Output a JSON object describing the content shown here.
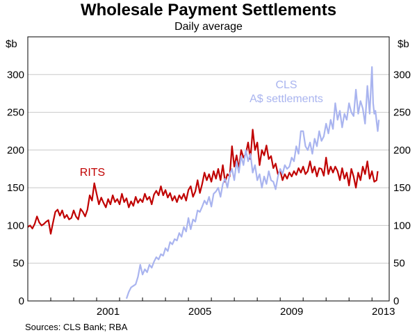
{
  "chart_data": {
    "type": "line",
    "title": "Wholesale Payment Settlements",
    "subtitle": "Daily average",
    "y_unit_left": "$b",
    "y_unit_right": "$b",
    "ylim": [
      0,
      350
    ],
    "y_ticks": [
      0,
      50,
      100,
      150,
      200,
      250,
      300
    ],
    "x_ticks": [
      {
        "value": 2001,
        "label": "2001"
      },
      {
        "value": 2005,
        "label": "2005"
      },
      {
        "value": 2009,
        "label": "2009"
      },
      {
        "value": 2013,
        "label": "2013"
      }
    ],
    "xlim": [
      1998.0,
      2013.75
    ],
    "source": "Sources: CLS Bank; RBA",
    "colors": {
      "RITS": "#c00000",
      "CLS": "#a9b4ef"
    },
    "series": [
      {
        "name": "RITS",
        "label_lines": [
          "RITS"
        ],
        "color": "#c00000",
        "points": [
          [
            1998.0,
            98
          ],
          [
            1998.1,
            100
          ],
          [
            1998.2,
            96
          ],
          [
            1998.3,
            102
          ],
          [
            1998.4,
            112
          ],
          [
            1998.5,
            104
          ],
          [
            1998.6,
            100
          ],
          [
            1998.7,
            102
          ],
          [
            1998.8,
            105
          ],
          [
            1998.9,
            107
          ],
          [
            1999.0,
            89
          ],
          [
            1999.1,
            104
          ],
          [
            1999.2,
            118
          ],
          [
            1999.3,
            121
          ],
          [
            1999.4,
            113
          ],
          [
            1999.5,
            120
          ],
          [
            1999.6,
            110
          ],
          [
            1999.7,
            114
          ],
          [
            1999.8,
            108
          ],
          [
            1999.9,
            110
          ],
          [
            2000.0,
            120
          ],
          [
            2000.1,
            112
          ],
          [
            2000.2,
            108
          ],
          [
            2000.3,
            122
          ],
          [
            2000.4,
            118
          ],
          [
            2000.5,
            112
          ],
          [
            2000.6,
            121
          ],
          [
            2000.7,
            140
          ],
          [
            2000.8,
            133
          ],
          [
            2000.9,
            156
          ],
          [
            2001.0,
            142
          ],
          [
            2001.1,
            128
          ],
          [
            2001.2,
            137
          ],
          [
            2001.3,
            130
          ],
          [
            2001.4,
            124
          ],
          [
            2001.5,
            135
          ],
          [
            2001.6,
            128
          ],
          [
            2001.7,
            140
          ],
          [
            2001.8,
            131
          ],
          [
            2001.9,
            135
          ],
          [
            2002.0,
            128
          ],
          [
            2002.1,
            142
          ],
          [
            2002.2,
            131
          ],
          [
            2002.3,
            136
          ],
          [
            2002.4,
            124
          ],
          [
            2002.5,
            132
          ],
          [
            2002.6,
            126
          ],
          [
            2002.7,
            138
          ],
          [
            2002.8,
            130
          ],
          [
            2002.9,
            135
          ],
          [
            2003.0,
            131
          ],
          [
            2003.1,
            142
          ],
          [
            2003.2,
            134
          ],
          [
            2003.3,
            138
          ],
          [
            2003.4,
            128
          ],
          [
            2003.5,
            141
          ],
          [
            2003.6,
            146
          ],
          [
            2003.7,
            140
          ],
          [
            2003.8,
            152
          ],
          [
            2003.9,
            140
          ],
          [
            2004.0,
            147
          ],
          [
            2004.1,
            137
          ],
          [
            2004.2,
            143
          ],
          [
            2004.3,
            133
          ],
          [
            2004.4,
            139
          ],
          [
            2004.5,
            131
          ],
          [
            2004.6,
            140
          ],
          [
            2004.7,
            135
          ],
          [
            2004.8,
            142
          ],
          [
            2004.9,
            133
          ],
          [
            2005.0,
            147
          ],
          [
            2005.1,
            152
          ],
          [
            2005.2,
            138
          ],
          [
            2005.3,
            145
          ],
          [
            2005.4,
            160
          ],
          [
            2005.5,
            143
          ],
          [
            2005.6,
            155
          ],
          [
            2005.7,
            170
          ],
          [
            2005.8,
            160
          ],
          [
            2005.9,
            168
          ],
          [
            2006.0,
            158
          ],
          [
            2006.1,
            172
          ],
          [
            2006.2,
            162
          ],
          [
            2006.3,
            175
          ],
          [
            2006.4,
            160
          ],
          [
            2006.5,
            180
          ],
          [
            2006.6,
            158
          ],
          [
            2006.7,
            168
          ],
          [
            2006.8,
            165
          ],
          [
            2006.9,
            205
          ],
          [
            2007.0,
            178
          ],
          [
            2007.1,
            193
          ],
          [
            2007.2,
            175
          ],
          [
            2007.3,
            200
          ],
          [
            2007.4,
            190
          ],
          [
            2007.5,
            195
          ],
          [
            2007.6,
            210
          ],
          [
            2007.7,
            188
          ],
          [
            2007.8,
            227
          ],
          [
            2007.9,
            200
          ],
          [
            2008.0,
            210
          ],
          [
            2008.1,
            180
          ],
          [
            2008.2,
            200
          ],
          [
            2008.3,
            193
          ],
          [
            2008.4,
            206
          ],
          [
            2008.5,
            188
          ],
          [
            2008.6,
            192
          ],
          [
            2008.7,
            176
          ],
          [
            2008.8,
            182
          ],
          [
            2008.9,
            168
          ],
          [
            2009.0,
            173
          ],
          [
            2009.1,
            160
          ],
          [
            2009.2,
            168
          ],
          [
            2009.3,
            162
          ],
          [
            2009.4,
            170
          ],
          [
            2009.5,
            165
          ],
          [
            2009.6,
            172
          ],
          [
            2009.7,
            167
          ],
          [
            2009.8,
            176
          ],
          [
            2009.9,
            170
          ],
          [
            2010.0,
            178
          ],
          [
            2010.1,
            168
          ],
          [
            2010.2,
            172
          ],
          [
            2010.3,
            185
          ],
          [
            2010.4,
            170
          ],
          [
            2010.5,
            178
          ],
          [
            2010.6,
            165
          ],
          [
            2010.7,
            176
          ],
          [
            2010.8,
            175
          ],
          [
            2010.9,
            166
          ],
          [
            2011.0,
            190
          ],
          [
            2011.1,
            168
          ],
          [
            2011.2,
            178
          ],
          [
            2011.3,
            170
          ],
          [
            2011.4,
            178
          ],
          [
            2011.5,
            172
          ],
          [
            2011.6,
            160
          ],
          [
            2011.7,
            176
          ],
          [
            2011.8,
            162
          ],
          [
            2011.9,
            170
          ],
          [
            2012.0,
            153
          ],
          [
            2012.1,
            175
          ],
          [
            2012.2,
            165
          ],
          [
            2012.3,
            150
          ],
          [
            2012.4,
            170
          ],
          [
            2012.5,
            160
          ],
          [
            2012.6,
            178
          ],
          [
            2012.7,
            168
          ],
          [
            2012.8,
            185
          ],
          [
            2012.9,
            162
          ],
          [
            2013.0,
            172
          ],
          [
            2013.1,
            158
          ],
          [
            2013.2,
            160
          ],
          [
            2013.25,
            172
          ]
        ]
      },
      {
        "name": "CLS A$ settlements",
        "label_lines": [
          "CLS",
          "A$ settlements"
        ],
        "color": "#a9b4ef",
        "points": [
          [
            2002.3,
            3
          ],
          [
            2002.4,
            12
          ],
          [
            2002.5,
            18
          ],
          [
            2002.6,
            20
          ],
          [
            2002.7,
            22
          ],
          [
            2002.8,
            32
          ],
          [
            2002.9,
            48
          ],
          [
            2003.0,
            35
          ],
          [
            2003.1,
            42
          ],
          [
            2003.2,
            38
          ],
          [
            2003.3,
            48
          ],
          [
            2003.4,
            44
          ],
          [
            2003.5,
            52
          ],
          [
            2003.6,
            58
          ],
          [
            2003.7,
            55
          ],
          [
            2003.8,
            62
          ],
          [
            2003.9,
            60
          ],
          [
            2004.0,
            70
          ],
          [
            2004.1,
            66
          ],
          [
            2004.2,
            78
          ],
          [
            2004.3,
            75
          ],
          [
            2004.4,
            82
          ],
          [
            2004.5,
            80
          ],
          [
            2004.6,
            90
          ],
          [
            2004.7,
            85
          ],
          [
            2004.8,
            98
          ],
          [
            2004.9,
            92
          ],
          [
            2005.0,
            110
          ],
          [
            2005.1,
            95
          ],
          [
            2005.2,
            108
          ],
          [
            2005.3,
            105
          ],
          [
            2005.4,
            120
          ],
          [
            2005.5,
            118
          ],
          [
            2005.6,
            125
          ],
          [
            2005.7,
            133
          ],
          [
            2005.8,
            128
          ],
          [
            2005.9,
            138
          ],
          [
            2006.0,
            125
          ],
          [
            2006.1,
            142
          ],
          [
            2006.2,
            145
          ],
          [
            2006.3,
            150
          ],
          [
            2006.4,
            138
          ],
          [
            2006.5,
            155
          ],
          [
            2006.6,
            162
          ],
          [
            2006.7,
            150
          ],
          [
            2006.8,
            168
          ],
          [
            2006.9,
            175
          ],
          [
            2007.0,
            160
          ],
          [
            2007.1,
            185
          ],
          [
            2007.2,
            170
          ],
          [
            2007.3,
            192
          ],
          [
            2007.4,
            180
          ],
          [
            2007.5,
            200
          ],
          [
            2007.6,
            185
          ],
          [
            2007.7,
            195
          ],
          [
            2007.8,
            170
          ],
          [
            2007.9,
            180
          ],
          [
            2008.0,
            160
          ],
          [
            2008.1,
            168
          ],
          [
            2008.2,
            150
          ],
          [
            2008.3,
            165
          ],
          [
            2008.4,
            155
          ],
          [
            2008.5,
            172
          ],
          [
            2008.6,
            160
          ],
          [
            2008.7,
            158
          ],
          [
            2008.8,
            148
          ],
          [
            2008.9,
            165
          ],
          [
            2009.0,
            175
          ],
          [
            2009.1,
            168
          ],
          [
            2009.2,
            180
          ],
          [
            2009.3,
            175
          ],
          [
            2009.4,
            178
          ],
          [
            2009.5,
            190
          ],
          [
            2009.6,
            185
          ],
          [
            2009.7,
            205
          ],
          [
            2009.8,
            195
          ],
          [
            2009.9,
            225
          ],
          [
            2010.0,
            225
          ],
          [
            2010.1,
            205
          ],
          [
            2010.2,
            200
          ],
          [
            2010.3,
            210
          ],
          [
            2010.4,
            195
          ],
          [
            2010.5,
            215
          ],
          [
            2010.6,
            205
          ],
          [
            2010.7,
            225
          ],
          [
            2010.8,
            212
          ],
          [
            2010.9,
            218
          ],
          [
            2011.0,
            235
          ],
          [
            2011.1,
            222
          ],
          [
            2011.2,
            240
          ],
          [
            2011.3,
            228
          ],
          [
            2011.4,
            262
          ],
          [
            2011.5,
            240
          ],
          [
            2011.6,
            252
          ],
          [
            2011.7,
            230
          ],
          [
            2011.8,
            248
          ],
          [
            2011.9,
            240
          ],
          [
            2012.0,
            262
          ],
          [
            2012.1,
            250
          ],
          [
            2012.2,
            245
          ],
          [
            2012.3,
            280
          ],
          [
            2012.4,
            248
          ],
          [
            2012.5,
            265
          ],
          [
            2012.6,
            255
          ],
          [
            2012.7,
            235
          ],
          [
            2012.8,
            285
          ],
          [
            2012.9,
            248
          ],
          [
            2013.0,
            310
          ],
          [
            2013.05,
            262
          ],
          [
            2013.1,
            248
          ],
          [
            2013.15,
            252
          ],
          [
            2013.2,
            238
          ],
          [
            2013.25,
            225
          ],
          [
            2013.3,
            240
          ]
        ]
      }
    ]
  }
}
